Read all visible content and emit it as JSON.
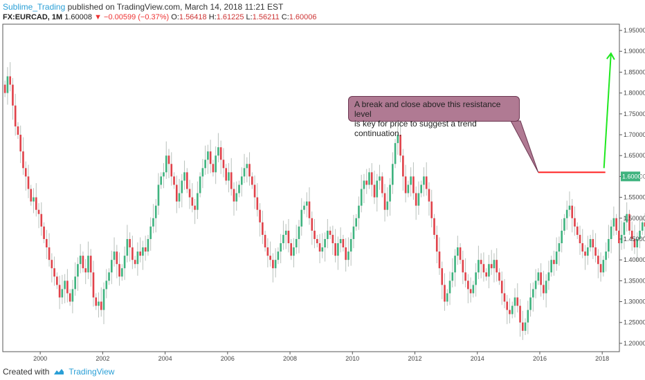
{
  "header": {
    "author": "Sublime_Trading",
    "published": "published on TradingView.com, March 14, 2018 11:21 EST",
    "symbol": "FX:EURCAD, 1M",
    "last": "1.60008",
    "change": "−0.00599 (−0.37%)",
    "o_label": "O:",
    "o": "1.56418",
    "h_label": "H:",
    "h": "1.61225",
    "l_label": "L:",
    "l": "1.56211",
    "c_label": "C:",
    "c": "1.60006"
  },
  "annotation": {
    "line1": "A break and close above this resistance level",
    "line2": "is key for price to suggest a trend continuation."
  },
  "footer": {
    "created_with": "Created with",
    "brand": "TradingView"
  },
  "colors": {
    "up": "#3fb37f",
    "down": "#e0424a",
    "resistance": "#ff1e1e",
    "arrow": "#1ee81e",
    "price_tag": "#3fb37f"
  },
  "chart_data": {
    "type": "candlestick",
    "x_ticks": [
      "2000",
      "2002",
      "2004",
      "2006",
      "2008",
      "2010",
      "2012",
      "2014",
      "2016",
      "2018"
    ],
    "y_ticks": [
      "1.95000",
      "1.90000",
      "1.85000",
      "1.80000",
      "1.75000",
      "1.70000",
      "1.65000",
      "1.60000",
      "1.55000",
      "1.50000",
      "1.45000",
      "1.40000",
      "1.35000",
      "1.30000",
      "1.25000",
      "1.20000"
    ],
    "ylim": [
      1.18,
      1.965
    ],
    "xlim": [
      1998.8,
      2018.55
    ],
    "current_price_label": "1.60006",
    "resistance": {
      "level": 1.61,
      "from": 2015.95,
      "to": 2018.1
    },
    "monthly_close": [
      1.8,
      1.84,
      1.82,
      1.77,
      1.72,
      1.7,
      1.66,
      1.62,
      1.6,
      1.57,
      1.54,
      1.55,
      1.52,
      1.51,
      1.48,
      1.45,
      1.43,
      1.4,
      1.38,
      1.36,
      1.34,
      1.31,
      1.33,
      1.35,
      1.32,
      1.3,
      1.33,
      1.36,
      1.39,
      1.41,
      1.38,
      1.37,
      1.41,
      1.37,
      1.31,
      1.29,
      1.3,
      1.28,
      1.33,
      1.35,
      1.37,
      1.4,
      1.42,
      1.39,
      1.36,
      1.38,
      1.41,
      1.45,
      1.43,
      1.4,
      1.39,
      1.42,
      1.41,
      1.43,
      1.42,
      1.45,
      1.48,
      1.5,
      1.53,
      1.58,
      1.6,
      1.61,
      1.65,
      1.63,
      1.6,
      1.58,
      1.54,
      1.56,
      1.59,
      1.61,
      1.57,
      1.55,
      1.53,
      1.52,
      1.56,
      1.6,
      1.62,
      1.64,
      1.66,
      1.63,
      1.61,
      1.65,
      1.67,
      1.64,
      1.62,
      1.59,
      1.61,
      1.57,
      1.54,
      1.56,
      1.58,
      1.6,
      1.62,
      1.63,
      1.6,
      1.58,
      1.55,
      1.52,
      1.49,
      1.46,
      1.43,
      1.41,
      1.4,
      1.38,
      1.4,
      1.42,
      1.44,
      1.46,
      1.47,
      1.44,
      1.41,
      1.43,
      1.45,
      1.48,
      1.52,
      1.53,
      1.54,
      1.5,
      1.47,
      1.45,
      1.44,
      1.42,
      1.43,
      1.45,
      1.47,
      1.46,
      1.44,
      1.41,
      1.44,
      1.45,
      1.43,
      1.4,
      1.42,
      1.45,
      1.48,
      1.5,
      1.53,
      1.57,
      1.59,
      1.58,
      1.61,
      1.58,
      1.55,
      1.59,
      1.6,
      1.56,
      1.52,
      1.54,
      1.58,
      1.63,
      1.68,
      1.7,
      1.65,
      1.6,
      1.56,
      1.58,
      1.6,
      1.56,
      1.53,
      1.56,
      1.58,
      1.6,
      1.57,
      1.54,
      1.5,
      1.46,
      1.42,
      1.38,
      1.34,
      1.3,
      1.32,
      1.35,
      1.37,
      1.41,
      1.43,
      1.4,
      1.37,
      1.35,
      1.33,
      1.32,
      1.34,
      1.37,
      1.4,
      1.39,
      1.37,
      1.36,
      1.39,
      1.38,
      1.4,
      1.37,
      1.35,
      1.32,
      1.3,
      1.28,
      1.27,
      1.29,
      1.31,
      1.29,
      1.25,
      1.23,
      1.25,
      1.28,
      1.31,
      1.33,
      1.35,
      1.37,
      1.34,
      1.32,
      1.35,
      1.37,
      1.4,
      1.39,
      1.42,
      1.44,
      1.47,
      1.5,
      1.52,
      1.53,
      1.5,
      1.48,
      1.46,
      1.44,
      1.42,
      1.41,
      1.43,
      1.45,
      1.43,
      1.41,
      1.39,
      1.37,
      1.4,
      1.42,
      1.45,
      1.48,
      1.5,
      1.47,
      1.44,
      1.46,
      1.49,
      1.51,
      1.47,
      1.45,
      1.43,
      1.45,
      1.47,
      1.49,
      1.48,
      1.46,
      1.44,
      1.42,
      1.41,
      1.42,
      1.44,
      1.46,
      1.48,
      1.5,
      1.49,
      1.48,
      1.5,
      1.52,
      1.54,
      1.53,
      1.51,
      1.56,
      1.6
    ]
  }
}
